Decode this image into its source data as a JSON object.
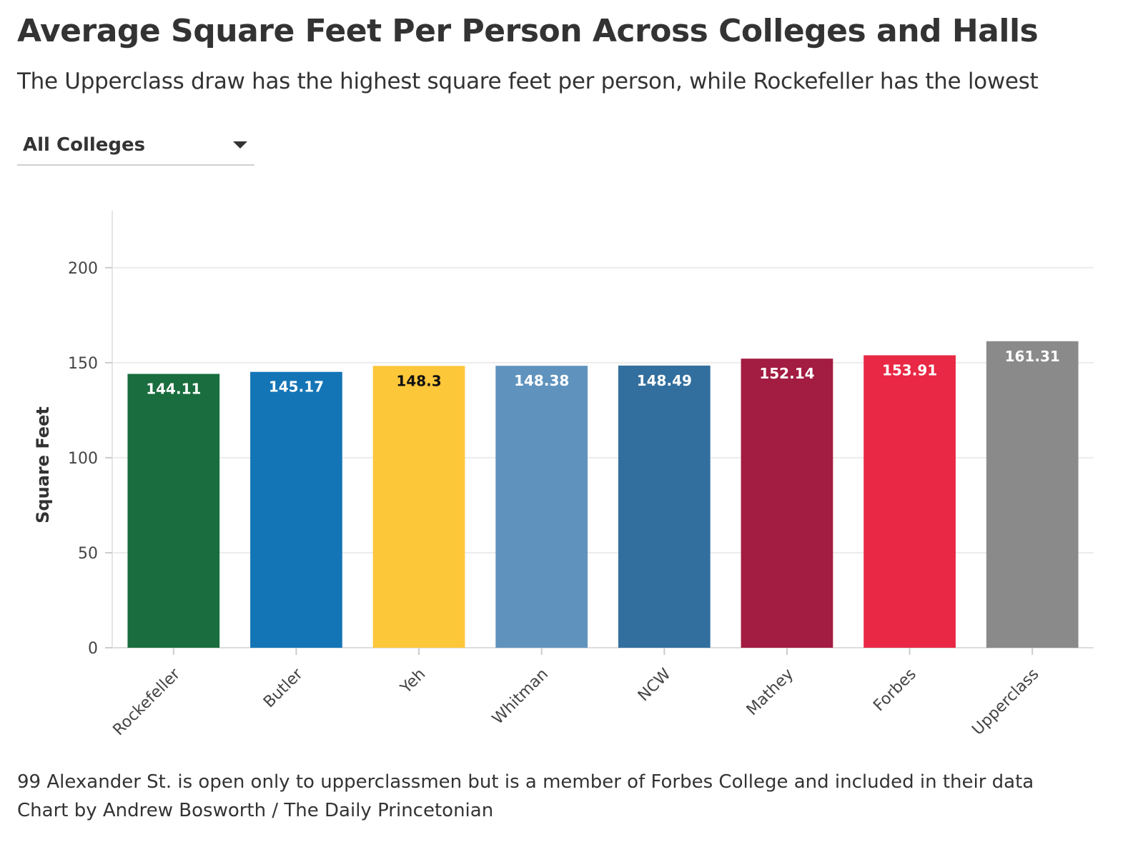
{
  "header": {
    "title": "Average Square Feet Per Person Across Colleges and Halls",
    "subtitle": "The Upperclass draw has the highest square feet per person, while Rockefeller has the lowest"
  },
  "filter": {
    "selected": "All Colleges",
    "caret_icon": "caret-down-icon"
  },
  "footer": {
    "note": "99 Alexander St. is open only to upperclassmen but is a member of Forbes College and included in their data",
    "credit": "Chart by Andrew Bosworth / The Daily Princetonian"
  },
  "chart_data": {
    "type": "bar",
    "title": "Average Square Feet Per Person Across Colleges and Halls",
    "ylabel": "Square Feet",
    "xlabel": "",
    "ylim": [
      0,
      230
    ],
    "yticks": [
      0,
      50,
      100,
      150,
      200
    ],
    "grid": true,
    "legend": "none",
    "categories": [
      "Rockefeller",
      "Butler",
      "Yeh",
      "Whitman",
      "NCW",
      "Mathey",
      "Forbes",
      "Upperclass"
    ],
    "values": [
      144.11,
      145.17,
      148.3,
      148.38,
      148.49,
      152.14,
      153.91,
      161.31
    ],
    "value_labels": [
      "144.11",
      "145.17",
      "148.3",
      "148.38",
      "148.49",
      "152.14",
      "153.91",
      "161.31"
    ],
    "colors": [
      "#1a6d3e",
      "#1475b6",
      "#fdc73a",
      "#5f93bd",
      "#336f9e",
      "#a31c42",
      "#e82844",
      "#8a8a8a"
    ],
    "label_colors": [
      "#ffffff",
      "#ffffff",
      "#111111",
      "#ffffff",
      "#ffffff",
      "#ffffff",
      "#ffffff",
      "#ffffff"
    ]
  }
}
